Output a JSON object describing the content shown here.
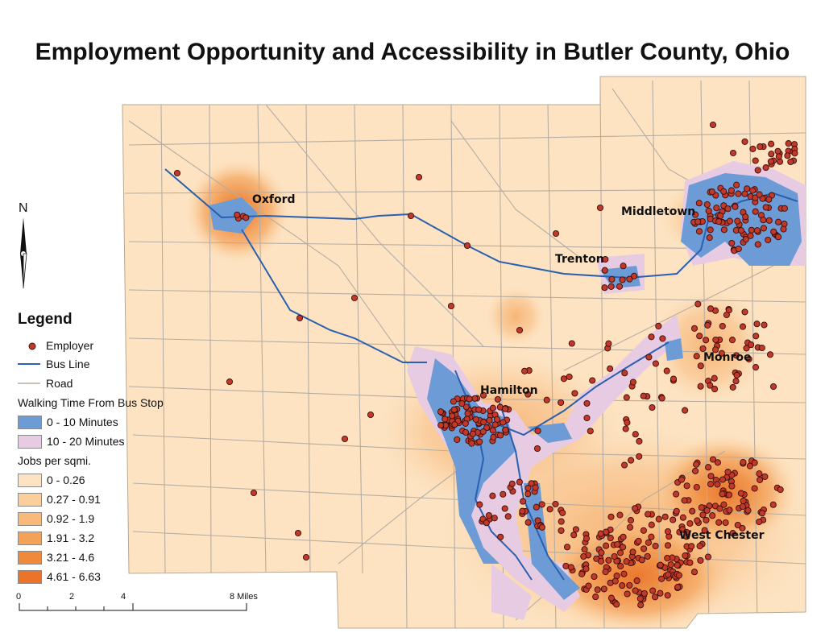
{
  "title": "Employment Opportunity and Accessibility in Butler County, Ohio",
  "north_label": "N",
  "cities": [
    {
      "name": "Oxford"
    },
    {
      "name": "Middletown"
    },
    {
      "name": "Trenton"
    },
    {
      "name": "Monroe"
    },
    {
      "name": "Hamilton"
    },
    {
      "name": "West Chester"
    }
  ],
  "legend": {
    "title": "Legend",
    "employer": "Employer",
    "bus_line": "Bus Line",
    "road": "Road",
    "walk_title": "Walking Time From Bus Stop",
    "walk_0_10": "0 - 10 Minutes",
    "walk_10_20": "10 - 20 Minutes",
    "jobs_title": "Jobs per sqmi.",
    "jobs_classes": [
      "0 - 0.26",
      "0.27 - 0.91",
      "0.92 - 1.9",
      "1.91 - 3.2",
      "3.21 - 4.6",
      "4.61 - 6.63"
    ]
  },
  "colors": {
    "jobs": [
      "#fde3c2",
      "#fbcf9c",
      "#f8b97b",
      "#f4a25a",
      "#ef8a3c",
      "#e9742a"
    ],
    "walk_0_10": "#6c9bd6",
    "walk_10_20": "#e6cbe3",
    "bus_line": "#2b5fb0",
    "road": "#b5ada3",
    "employer": "#c0392b"
  },
  "scale_bar": {
    "ticks": [
      "0",
      "2",
      "4",
      "8 Miles"
    ]
  }
}
